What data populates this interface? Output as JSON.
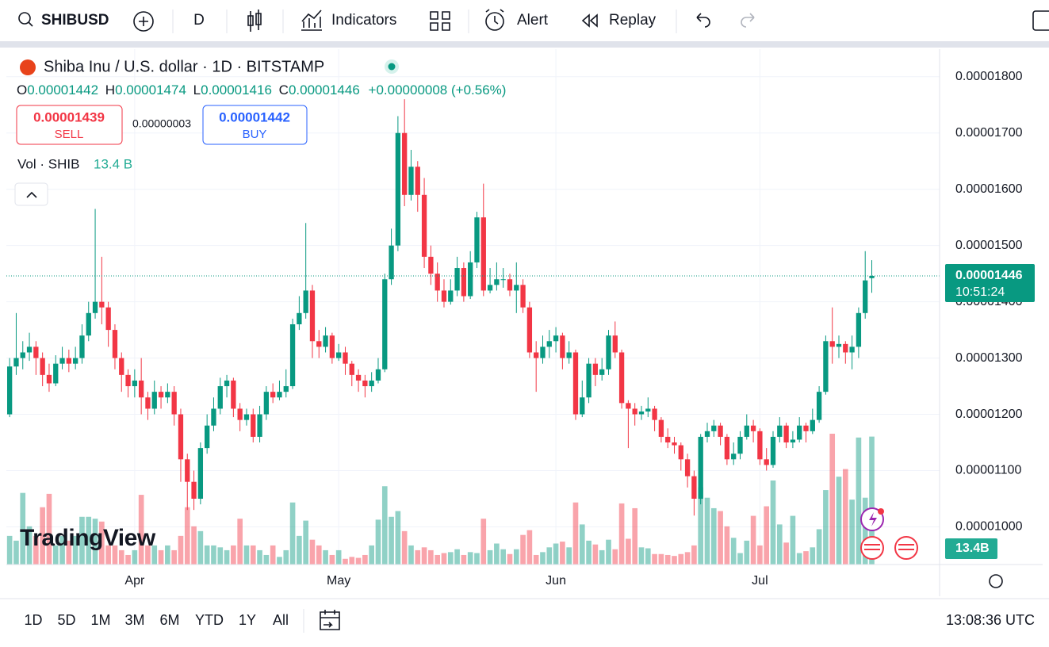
{
  "toolbar": {
    "symbol": "SHIBUSD",
    "interval": "D",
    "indicators": "Indicators",
    "alert": "Alert",
    "replay": "Replay"
  },
  "legend": {
    "title": "Shiba Inu / U.S. dollar · 1D · BITSTAMP",
    "o": "O",
    "h": "H",
    "l": "L",
    "c": "C",
    "change": "+0.00000008 (+0.56%)",
    "sell_price": "0.00001439",
    "sell": "SELL",
    "spread": "0.00000003",
    "buy_price": "0.00001442",
    "buy": "BUY",
    "vol": "Vol · SHIB",
    "vol_value": "13.4 B"
  },
  "logo": "TradingView",
  "chart_data": {
    "type": "candlestick",
    "up_color": "#089981",
    "down_color": "#f23645",
    "open": [
      1.2e-05,
      1.285e-05,
      1.3e-05,
      1.31e-05,
      1.32e-05,
      1.3e-05,
      1.27e-05,
      1.255e-05,
      1.29e-05,
      1.3e-05,
      1.29e-05,
      1.3e-05,
      1.34e-05,
      1.38e-05,
      1.4e-05,
      1.39e-05,
      1.35e-05,
      1.3e-05,
      1.27e-05,
      1.25e-05,
      1.26e-05,
      1.23e-05,
      1.21e-05,
      1.24e-05,
      1.23e-05,
      1.24e-05,
      1.2e-05,
      1.12e-05,
      1.08e-05,
      1.05e-05,
      1.14e-05,
      1.18e-05,
      1.21e-05,
      1.25e-05,
      1.26e-05,
      1.21e-05,
      1.19e-05,
      1.2e-05,
      1.16e-05,
      1.2e-05,
      1.24e-05,
      1.23e-05,
      1.24e-05,
      1.25e-05,
      1.36e-05,
      1.38e-05,
      1.42e-05,
      1.33e-05,
      1.32e-05,
      1.34e-05,
      1.3e-05,
      1.31e-05,
      1.29e-05,
      1.27e-05,
      1.26e-05,
      1.25e-05,
      1.26e-05,
      1.28e-05,
      1.44e-05,
      1.5e-05,
      1.7e-05,
      1.59e-05,
      1.64e-05,
      1.59e-05,
      1.48e-05,
      1.45e-05,
      1.42e-05,
      1.4e-05,
      1.42e-05,
      1.46e-05,
      1.41e-05,
      1.47e-05,
      1.55e-05,
      1.42e-05,
      1.43e-05,
      1.44e-05,
      1.44e-05,
      1.42e-05,
      1.43e-05,
      1.39e-05,
      1.31e-05,
      1.3e-05,
      1.32e-05,
      1.33e-05,
      1.34e-05,
      1.3e-05,
      1.31e-05,
      1.2e-05,
      1.23e-05,
      1.29e-05,
      1.27e-05,
      1.28e-05,
      1.34e-05,
      1.31e-05,
      1.22e-05,
      1.21e-05,
      1.2e-05,
      1.205e-05,
      1.21e-05,
      1.19e-05,
      1.16e-05,
      1.15e-05,
      1.145e-05,
      1.12e-05,
      1.09e-05,
      1.05e-05,
      1.16e-05,
      1.17e-05,
      1.18e-05,
      1.16e-05,
      1.12e-05,
      1.13e-05,
      1.16e-05,
      1.18e-05,
      1.17e-05,
      1.12e-05,
      1.11e-05,
      1.16e-05,
      1.18e-05,
      1.15e-05,
      1.155e-05,
      1.18e-05,
      1.17e-05,
      1.19e-05,
      1.24e-05,
      1.33e-05,
      1.32e-05,
      1.325e-05,
      1.31e-05,
      1.32e-05,
      1.38e-05,
      1.442e-05
    ],
    "high": [
      1.3e-05,
      1.38e-05,
      1.33e-05,
      1.345e-05,
      1.33e-05,
      1.31e-05,
      1.29e-05,
      1.305e-05,
      1.32e-05,
      1.315e-05,
      1.32e-05,
      1.36e-05,
      1.4e-05,
      1.565e-05,
      1.48e-05,
      1.4e-05,
      1.36e-05,
      1.31e-05,
      1.28e-05,
      1.28e-05,
      1.3e-05,
      1.24e-05,
      1.26e-05,
      1.25e-05,
      1.255e-05,
      1.25e-05,
      1.21e-05,
      1.13e-05,
      1.1e-05,
      1.15e-05,
      1.2e-05,
      1.23e-05,
      1.265e-05,
      1.27e-05,
      1.265e-05,
      1.22e-05,
      1.21e-05,
      1.21e-05,
      1.215e-05,
      1.25e-05,
      1.255e-05,
      1.26e-05,
      1.28e-05,
      1.37e-05,
      1.41e-05,
      1.54e-05,
      1.43e-05,
      1.35e-05,
      1.355e-05,
      1.345e-05,
      1.325e-05,
      1.32e-05,
      1.295e-05,
      1.28e-05,
      1.27e-05,
      1.275e-05,
      1.3e-05,
      1.45e-05,
      1.53e-05,
      1.73e-05,
      1.76e-05,
      1.67e-05,
      1.65e-05,
      1.62e-05,
      1.5e-05,
      1.47e-05,
      1.44e-05,
      1.44e-05,
      1.48e-05,
      1.47e-05,
      1.49e-05,
      1.56e-05,
      1.61e-05,
      1.46e-05,
      1.47e-05,
      1.46e-05,
      1.45e-05,
      1.47e-05,
      1.44e-05,
      1.4e-05,
      1.33e-05,
      1.34e-05,
      1.35e-05,
      1.355e-05,
      1.345e-05,
      1.33e-05,
      1.315e-05,
      1.26e-05,
      1.3e-05,
      1.3e-05,
      1.3e-05,
      1.35e-05,
      1.365e-05,
      1.315e-05,
      1.225e-05,
      1.22e-05,
      1.215e-05,
      1.23e-05,
      1.215e-05,
      1.195e-05,
      1.175e-05,
      1.16e-05,
      1.15e-05,
      1.13e-05,
      1.1e-05,
      1.165e-05,
      1.185e-05,
      1.19e-05,
      1.185e-05,
      1.165e-05,
      1.15e-05,
      1.17e-05,
      1.2e-05,
      1.19e-05,
      1.175e-05,
      1.14e-05,
      1.17e-05,
      1.195e-05,
      1.185e-05,
      1.17e-05,
      1.195e-05,
      1.185e-05,
      1.21e-05,
      1.25e-05,
      1.34e-05,
      1.39e-05,
      1.34e-05,
      1.33e-05,
      1.34e-05,
      1.39e-05,
      1.49e-05,
      1.474e-05
    ],
    "low": [
      1.195e-05,
      1.27e-05,
      1.28e-05,
      1.295e-05,
      1.27e-05,
      1.25e-05,
      1.24e-05,
      1.25e-05,
      1.28e-05,
      1.275e-05,
      1.28e-05,
      1.29e-05,
      1.33e-05,
      1.37e-05,
      1.36e-05,
      1.32e-05,
      1.28e-05,
      1.24e-05,
      1.23e-05,
      1.23e-05,
      1.2e-05,
      1.19e-05,
      1.2e-05,
      1.21e-05,
      1.22e-05,
      1.18e-05,
      1.08e-05,
      1.03e-05,
      1.03e-05,
      1.04e-05,
      1.13e-05,
      1.17e-05,
      1.2e-05,
      1.23e-05,
      1.195e-05,
      1.17e-05,
      1.18e-05,
      1.15e-05,
      1.15e-05,
      1.19e-05,
      1.22e-05,
      1.225e-05,
      1.23e-05,
      1.245e-05,
      1.35e-05,
      1.37e-05,
      1.3e-05,
      1.3e-05,
      1.31e-05,
      1.29e-05,
      1.295e-05,
      1.27e-05,
      1.25e-05,
      1.24e-05,
      1.23e-05,
      1.24e-05,
      1.255e-05,
      1.275e-05,
      1.43e-05,
      1.49e-05,
      1.57e-05,
      1.58e-05,
      1.56e-05,
      1.46e-05,
      1.43e-05,
      1.4e-05,
      1.39e-05,
      1.395e-05,
      1.41e-05,
      1.4e-05,
      1.405e-05,
      1.46e-05,
      1.41e-05,
      1.415e-05,
      1.42e-05,
      1.425e-05,
      1.41e-05,
      1.38e-05,
      1.38e-05,
      1.3e-05,
      1.24e-05,
      1.29e-05,
      1.3e-05,
      1.31e-05,
      1.28e-05,
      1.29e-05,
      1.19e-05,
      1.195e-05,
      1.22e-05,
      1.25e-05,
      1.26e-05,
      1.27e-05,
      1.3e-05,
      1.21e-05,
      1.14e-05,
      1.18e-05,
      1.19e-05,
      1.195e-05,
      1.17e-05,
      1.15e-05,
      1.14e-05,
      1.13e-05,
      1.1e-05,
      1.07e-05,
      1.02e-05,
      1.04e-05,
      1.15e-05,
      1.16e-05,
      1.145e-05,
      1.11e-05,
      1.11e-05,
      1.12e-05,
      1.155e-05,
      1.15e-05,
      1.11e-05,
      1.1e-05,
      1.105e-05,
      1.15e-05,
      1.14e-05,
      1.14e-05,
      1.15e-05,
      1.15e-05,
      1.165e-05,
      1.185e-05,
      1.235e-05,
      1.29e-05,
      1.3e-05,
      1.29e-05,
      1.28e-05,
      1.3e-05,
      1.37e-05,
      1.416e-05
    ],
    "close": [
      1.285e-05,
      1.3e-05,
      1.31e-05,
      1.32e-05,
      1.3e-05,
      1.27e-05,
      1.255e-05,
      1.29e-05,
      1.3e-05,
      1.29e-05,
      1.3e-05,
      1.34e-05,
      1.38e-05,
      1.4e-05,
      1.39e-05,
      1.35e-05,
      1.3e-05,
      1.27e-05,
      1.25e-05,
      1.26e-05,
      1.23e-05,
      1.21e-05,
      1.24e-05,
      1.23e-05,
      1.24e-05,
      1.2e-05,
      1.12e-05,
      1.08e-05,
      1.05e-05,
      1.14e-05,
      1.18e-05,
      1.21e-05,
      1.25e-05,
      1.26e-05,
      1.21e-05,
      1.19e-05,
      1.2e-05,
      1.16e-05,
      1.2e-05,
      1.24e-05,
      1.23e-05,
      1.24e-05,
      1.25e-05,
      1.36e-05,
      1.38e-05,
      1.42e-05,
      1.33e-05,
      1.32e-05,
      1.34e-05,
      1.3e-05,
      1.31e-05,
      1.29e-05,
      1.27e-05,
      1.26e-05,
      1.25e-05,
      1.26e-05,
      1.28e-05,
      1.44e-05,
      1.5e-05,
      1.7e-05,
      1.59e-05,
      1.64e-05,
      1.59e-05,
      1.48e-05,
      1.45e-05,
      1.42e-05,
      1.4e-05,
      1.42e-05,
      1.46e-05,
      1.41e-05,
      1.47e-05,
      1.55e-05,
      1.42e-05,
      1.43e-05,
      1.44e-05,
      1.44e-05,
      1.42e-05,
      1.43e-05,
      1.39e-05,
      1.31e-05,
      1.3e-05,
      1.32e-05,
      1.33e-05,
      1.34e-05,
      1.3e-05,
      1.31e-05,
      1.2e-05,
      1.23e-05,
      1.29e-05,
      1.27e-05,
      1.28e-05,
      1.34e-05,
      1.31e-05,
      1.22e-05,
      1.21e-05,
      1.2e-05,
      1.205e-05,
      1.21e-05,
      1.19e-05,
      1.16e-05,
      1.15e-05,
      1.145e-05,
      1.12e-05,
      1.09e-05,
      1.05e-05,
      1.16e-05,
      1.17e-05,
      1.18e-05,
      1.16e-05,
      1.12e-05,
      1.13e-05,
      1.16e-05,
      1.18e-05,
      1.17e-05,
      1.12e-05,
      1.11e-05,
      1.16e-05,
      1.18e-05,
      1.15e-05,
      1.155e-05,
      1.18e-05,
      1.17e-05,
      1.19e-05,
      1.24e-05,
      1.33e-05,
      1.32e-05,
      1.325e-05,
      1.31e-05,
      1.32e-05,
      1.38e-05,
      1.438e-05,
      1.446e-05
    ],
    "volume": [
      3,
      2.5,
      7.5,
      4,
      3,
      6,
      7.4,
      2,
      3,
      2.5,
      3,
      5,
      5,
      4.8,
      4.5,
      2,
      2,
      1.5,
      1,
      1.5,
      7.3,
      2,
      2,
      1.5,
      2,
      1.5,
      3,
      6,
      4,
      3.5,
      2,
      2,
      1.8,
      1.5,
      2,
      4.8,
      2,
      2,
      1.5,
      1,
      2,
      0.8,
      1.5,
      6.5,
      3,
      4.6,
      2.6,
      2,
      1.5,
      1,
      1.5,
      0.6,
      0.8,
      0.7,
      1,
      2,
      4.7,
      8.2,
      5,
      5.6,
      3.5,
      2,
      1.5,
      1.8,
      1.5,
      1,
      1.2,
      1.3,
      1.6,
      1,
      1.3,
      1.2,
      4.8,
      1.5,
      2.2,
      1.6,
      1.1,
      1.6,
      3.1,
      3.6,
      1,
      1.3,
      1.8,
      2.2,
      2.4,
      1.8,
      6.5,
      4.2,
      2.5,
      2.1,
      1.5,
      2.6,
      1.6,
      6.4,
      2.7,
      5.9,
      1.8,
      1.7,
      1.1,
      1.1,
      1,
      0.9,
      1.1,
      1.3,
      2,
      8.1,
      7,
      5.9,
      5.6,
      4,
      2.8,
      1.2,
      2.5,
      5.1,
      2,
      6.1,
      8.8,
      4.2,
      2.3,
      5.1,
      1.2,
      1.4,
      1.8,
      3.7,
      7.8,
      13.7,
      9.2,
      10,
      6.8,
      13.3,
      7,
      13.4
    ],
    "ylim": [
      9.33e-06,
      1.849e-05
    ],
    "yticks": [
      {
        "value": 1e-05,
        "label": "0.00001000"
      },
      {
        "value": 1.1e-05,
        "label": "0.00001100"
      },
      {
        "value": 1.2e-05,
        "label": "0.00001200"
      },
      {
        "value": 1.3e-05,
        "label": "0.00001300"
      },
      {
        "value": 1.4e-05,
        "label": "0.00001400"
      },
      {
        "value": 1.5e-05,
        "label": "0.00001500"
      },
      {
        "value": 1.6e-05,
        "label": "0.00001600"
      },
      {
        "value": 1.7e-05,
        "label": "0.00001700"
      },
      {
        "value": 1.8e-05,
        "label": "0.00001800"
      }
    ],
    "xlim": [
      -0.5,
      141.3
    ],
    "xticks": [
      {
        "value": 19,
        "label": "Apr"
      },
      {
        "value": 50,
        "label": "May"
      },
      {
        "value": 83,
        "label": "Jun"
      },
      {
        "value": 114,
        "label": "Jul"
      }
    ],
    "grid": true,
    "countdown": "10:51:24",
    "volume_axis_label": "13.4B"
  },
  "bottom": {
    "ranges": [
      "1D",
      "5D",
      "1M",
      "3M",
      "6M",
      "YTD",
      "1Y",
      "All"
    ],
    "clock": "13:08:36 UTC"
  }
}
